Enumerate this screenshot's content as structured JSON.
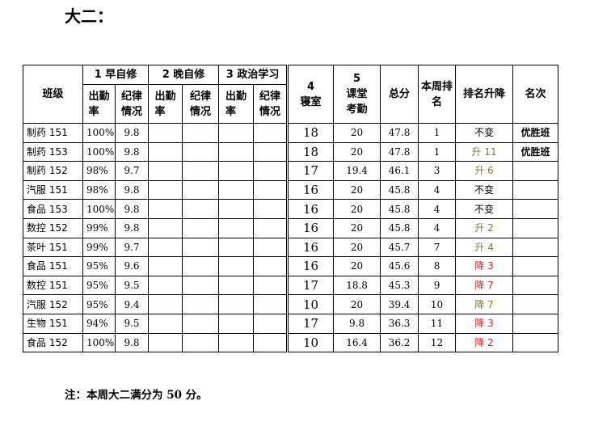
{
  "title": "大二：",
  "table": {
    "headers": {
      "class": "班级",
      "morning": {
        "label": "1 早自修",
        "attendance": "出勤\n率",
        "discipline": "纪律\n情况"
      },
      "evening": {
        "label": "2 晚自修",
        "attendance": "出勤\n率",
        "discipline": "纪律\n情况"
      },
      "politics": {
        "label": "3 政治学习",
        "attendance": "出勤\n率",
        "discipline": "纪律\n情况"
      },
      "dorm": "4\n寝室",
      "class_attendance": "5\n课堂\n考勤",
      "total": "总分",
      "rank": "本周排\n名",
      "rank_change": "排名升降",
      "place": "名次"
    },
    "rows": [
      {
        "class": "制药 151",
        "morning_attendance": "100%",
        "morning_discipline": "9.8",
        "dorm": "18",
        "class_attendance": "20",
        "total": "47.8",
        "rank": "1",
        "rank_change": "不变",
        "change_color": "#000000",
        "place": "优胜班"
      },
      {
        "class": "制药 153",
        "morning_attendance": "100%",
        "morning_discipline": "9.8",
        "dorm": "18",
        "class_attendance": "20",
        "total": "47.8",
        "rank": "1",
        "rank_change": "升 11",
        "change_color": "#7d7d2b",
        "place": "优胜班"
      },
      {
        "class": "制药 152",
        "morning_attendance": "98%",
        "morning_discipline": "9.7",
        "dorm": "17",
        "class_attendance": "19.4",
        "total": "46.1",
        "rank": "3",
        "rank_change": "升 6",
        "change_color": "#7d7d2b"
      },
      {
        "class": "汽服 151",
        "morning_attendance": "98%",
        "morning_discipline": "9.8",
        "dorm": "16",
        "class_attendance": "20",
        "total": "45.8",
        "rank": "4",
        "rank_change": "不变",
        "change_color": "#000000"
      },
      {
        "class": "食品 153",
        "morning_attendance": "100%",
        "morning_discipline": "9.8",
        "dorm": "16",
        "class_attendance": "20",
        "total": "45.8",
        "rank": "4",
        "rank_change": "不变",
        "change_color": "#000000"
      },
      {
        "class": "数控 152",
        "morning_attendance": "99%",
        "morning_discipline": "9.8",
        "dorm": "16",
        "class_attendance": "20",
        "total": "45.8",
        "rank": "4",
        "rank_change": "升 2",
        "change_color": "#7d7d2b"
      },
      {
        "class": "茶叶 151",
        "morning_attendance": "99%",
        "morning_discipline": "9.7",
        "dorm": "16",
        "class_attendance": "20",
        "total": "45.7",
        "rank": "7",
        "rank_change": "升 4",
        "change_color": "#7d7d2b"
      },
      {
        "class": "食品 151",
        "morning_attendance": "95%",
        "morning_discipline": "9.6",
        "dorm": "16",
        "class_attendance": "20",
        "total": "45.6",
        "rank": "8",
        "rank_change": "降 3",
        "change_color": "#c0282d"
      },
      {
        "class": "数控 151",
        "morning_attendance": "95%",
        "morning_discipline": "9.5",
        "dorm": "17",
        "class_attendance": "18.8",
        "total": "45.3",
        "rank": "9",
        "rank_change": "降 7",
        "change_color": "#c0282d"
      },
      {
        "class": "汽服 152",
        "morning_attendance": "95%",
        "morning_discipline": "9.4",
        "dorm": "10",
        "class_attendance": "20",
        "total": "39.4",
        "rank": "10",
        "rank_change": "降 7",
        "change_color": "#7d7d2b"
      },
      {
        "class": "生物 151",
        "morning_attendance": "94%",
        "morning_discipline": "9.5",
        "dorm": "17",
        "class_attendance": "9.8",
        "total": "36.3",
        "rank": "11",
        "rank_change": "降 3",
        "change_color": "#c0282d"
      },
      {
        "class": "食品 152",
        "morning_attendance": "100%",
        "morning_discipline": "9.8",
        "dorm": "10",
        "class_attendance": "16.4",
        "total": "36.2",
        "rank": "12",
        "rank_change": "降 2",
        "change_color": "#c0282d"
      }
    ]
  },
  "note": "注：本周大二满分为 50 分。"
}
